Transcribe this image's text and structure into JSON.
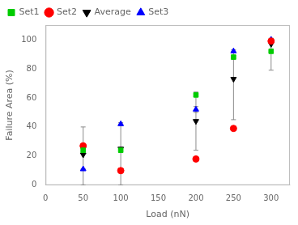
{
  "chart_data": {
    "type": "scatter",
    "xlabel": "Load (nN)",
    "ylabel": "Failure Area (%)",
    "x": [
      50,
      100,
      200,
      250,
      300
    ],
    "series": [
      {
        "name": "Set1",
        "color": "#00cc00",
        "marker": "square",
        "values": [
          24,
          24,
          62,
          88,
          92
        ]
      },
      {
        "name": "Set2",
        "color": "#ff0000",
        "marker": "circle",
        "values": [
          27,
          10,
          18,
          39,
          99
        ]
      },
      {
        "name": "Average",
        "color": "#000000",
        "marker": "triangle-down",
        "values": [
          21,
          25,
          44,
          73,
          97
        ],
        "yerr_low": [
          21,
          25,
          20,
          28,
          18
        ],
        "yerr_high": [
          19,
          17,
          20,
          19,
          3
        ]
      },
      {
        "name": "Set3",
        "color": "#0000ff",
        "marker": "triangle-up",
        "values": [
          11,
          42,
          52,
          92,
          100
        ],
        "yerr": [
          0,
          1,
          2,
          1,
          1
        ]
      }
    ],
    "xlim": [
      0,
      325
    ],
    "ylim": [
      0,
      110
    ],
    "xticks": [
      0,
      50,
      100,
      150,
      200,
      250,
      300
    ],
    "yticks": [
      0,
      20,
      40,
      60,
      80,
      100
    ],
    "grid": false,
    "legend": "upper left"
  }
}
